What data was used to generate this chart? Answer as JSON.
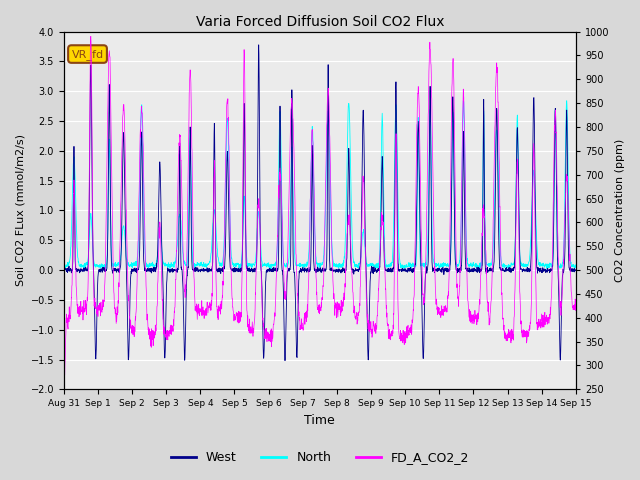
{
  "title": "Varia Forced Diffusion Soil CO2 Flux",
  "xlabel": "Time",
  "ylabel_left": "Soil CO2 FLux (mmol/m2/s)",
  "ylabel_right": "CO2 Concentration (ppm)",
  "ylim_left": [
    -2.0,
    4.0
  ],
  "ylim_right": [
    250,
    1000
  ],
  "yticks_left": [
    -2.0,
    -1.5,
    -1.0,
    -0.5,
    0.0,
    0.5,
    1.0,
    1.5,
    2.0,
    2.5,
    3.0,
    3.5,
    4.0
  ],
  "yticks_right": [
    250,
    300,
    350,
    400,
    450,
    500,
    550,
    600,
    650,
    700,
    750,
    800,
    850,
    900,
    950,
    1000
  ],
  "xtick_labels": [
    "Aug 31",
    "Sep 1",
    "Sep 2",
    "Sep 3",
    "Sep 4",
    "Sep 5",
    "Sep 6",
    "Sep 7",
    "Sep 8",
    "Sep 9",
    "Sep 10",
    "Sep 11",
    "Sep 12",
    "Sep 13",
    "Sep 14",
    "Sep 15"
  ],
  "legend_labels": [
    "West",
    "North",
    "FD_A_CO2_2"
  ],
  "legend_colors": [
    "#00008B",
    "#00FFFF",
    "#FF00FF"
  ],
  "annotation_text": "VR_fd",
  "annotation_color": "#8B4513",
  "annotation_bg": "#FFD700",
  "west_color": "#00008B",
  "north_color": "#00FFFF",
  "co2_color": "#FF00FF",
  "background_color": "#D8D8D8",
  "plot_bg_color": "#EBEBEB",
  "grid_color": "#FFFFFF",
  "figsize": [
    6.4,
    4.8
  ],
  "dpi": 100
}
